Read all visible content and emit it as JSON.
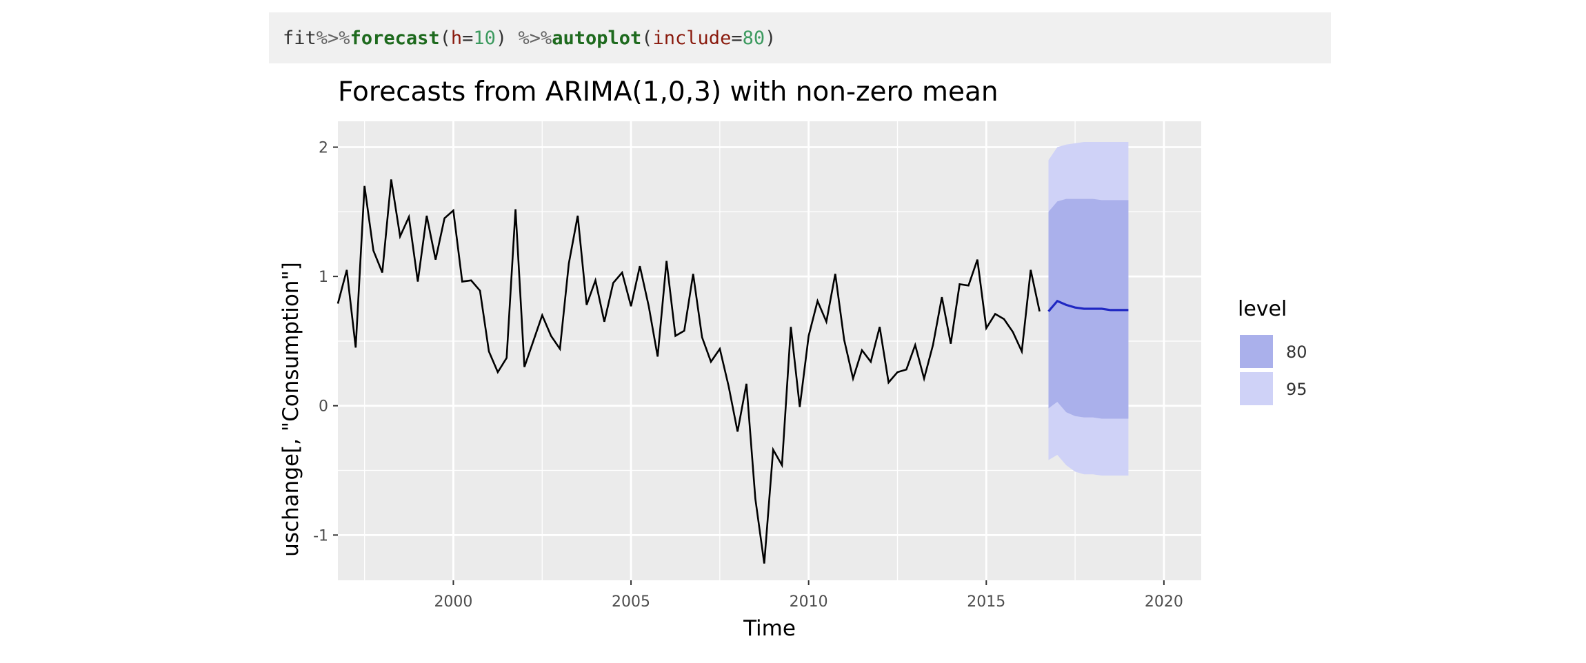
{
  "code": {
    "obj": "fit",
    "pipe": "%>%",
    "fn1": "forecast",
    "arg1": "h",
    "val1": "10",
    "fn2": "autoplot",
    "arg2": "include",
    "val2": "80"
  },
  "colors": {
    "panel_bg": "#ebebeb",
    "grid": "#ffffff",
    "series": "#000000",
    "forecast_line": "#1f27c2",
    "band80": "#aab0eb",
    "band95": "#cfd2f7"
  },
  "chart_data": {
    "type": "line",
    "title": "Forecasts from ARIMA(1,0,3) with non-zero mean",
    "xlabel": "Time",
    "ylabel": "uschange[, \"Consumption\"]",
    "xlim": [
      1996.75,
      2021.05
    ],
    "ylim": [
      -1.35,
      2.2
    ],
    "x_ticks": [
      2000,
      2005,
      2010,
      2015,
      2020
    ],
    "x_tick_labels": [
      "2000",
      "2005",
      "2010",
      "2015",
      "2020"
    ],
    "y_ticks": [
      -1,
      0,
      1,
      2
    ],
    "y_tick_labels": [
      "-1",
      "0",
      "1",
      "2"
    ],
    "grid": true,
    "legend": {
      "title": "level",
      "position": "right",
      "entries": [
        "80",
        "95"
      ]
    },
    "history": {
      "start": 1996.75,
      "step": 0.25,
      "values": [
        0.79,
        1.05,
        0.45,
        1.7,
        1.2,
        1.03,
        1.75,
        1.31,
        1.46,
        0.96,
        1.47,
        1.13,
        1.45,
        1.51,
        0.96,
        0.97,
        0.89,
        0.42,
        0.26,
        0.37,
        1.52,
        0.3,
        0.5,
        0.7,
        0.54,
        0.44,
        1.1,
        1.47,
        0.78,
        0.97,
        0.65,
        0.95,
        1.03,
        0.77,
        1.08,
        0.77,
        0.38,
        1.12,
        0.54,
        0.58,
        1.02,
        0.53,
        0.34,
        0.44,
        0.15,
        -0.2,
        0.17,
        -0.72,
        -1.22,
        -0.34,
        -0.46,
        0.61,
        -0.01,
        0.54,
        0.81,
        0.65,
        1.02,
        0.51,
        0.21,
        0.43,
        0.34,
        0.61,
        0.18,
        0.26,
        0.28,
        0.47,
        0.21,
        0.47,
        0.84,
        0.48,
        0.94,
        0.93,
        1.13,
        0.6,
        0.71,
        0.67,
        0.57,
        0.42,
        1.05,
        0.73
      ]
    },
    "forecast": {
      "x": [
        2016.75,
        2017.0,
        2017.25,
        2017.5,
        2017.75,
        2018.0,
        2018.25,
        2018.5,
        2018.75,
        2019.0
      ],
      "mean": [
        0.73,
        0.81,
        0.78,
        0.76,
        0.75,
        0.75,
        0.75,
        0.74,
        0.74,
        0.74
      ],
      "lo80": [
        -0.02,
        0.03,
        -0.05,
        -0.08,
        -0.09,
        -0.09,
        -0.1,
        -0.1,
        -0.1,
        -0.1
      ],
      "hi80": [
        1.5,
        1.58,
        1.6,
        1.6,
        1.6,
        1.6,
        1.59,
        1.59,
        1.59,
        1.59
      ],
      "lo95": [
        -0.42,
        -0.38,
        -0.46,
        -0.51,
        -0.53,
        -0.53,
        -0.54,
        -0.54,
        -0.54,
        -0.54
      ],
      "hi95": [
        1.9,
        2.0,
        2.02,
        2.03,
        2.04,
        2.04,
        2.04,
        2.04,
        2.04,
        2.04
      ]
    }
  }
}
